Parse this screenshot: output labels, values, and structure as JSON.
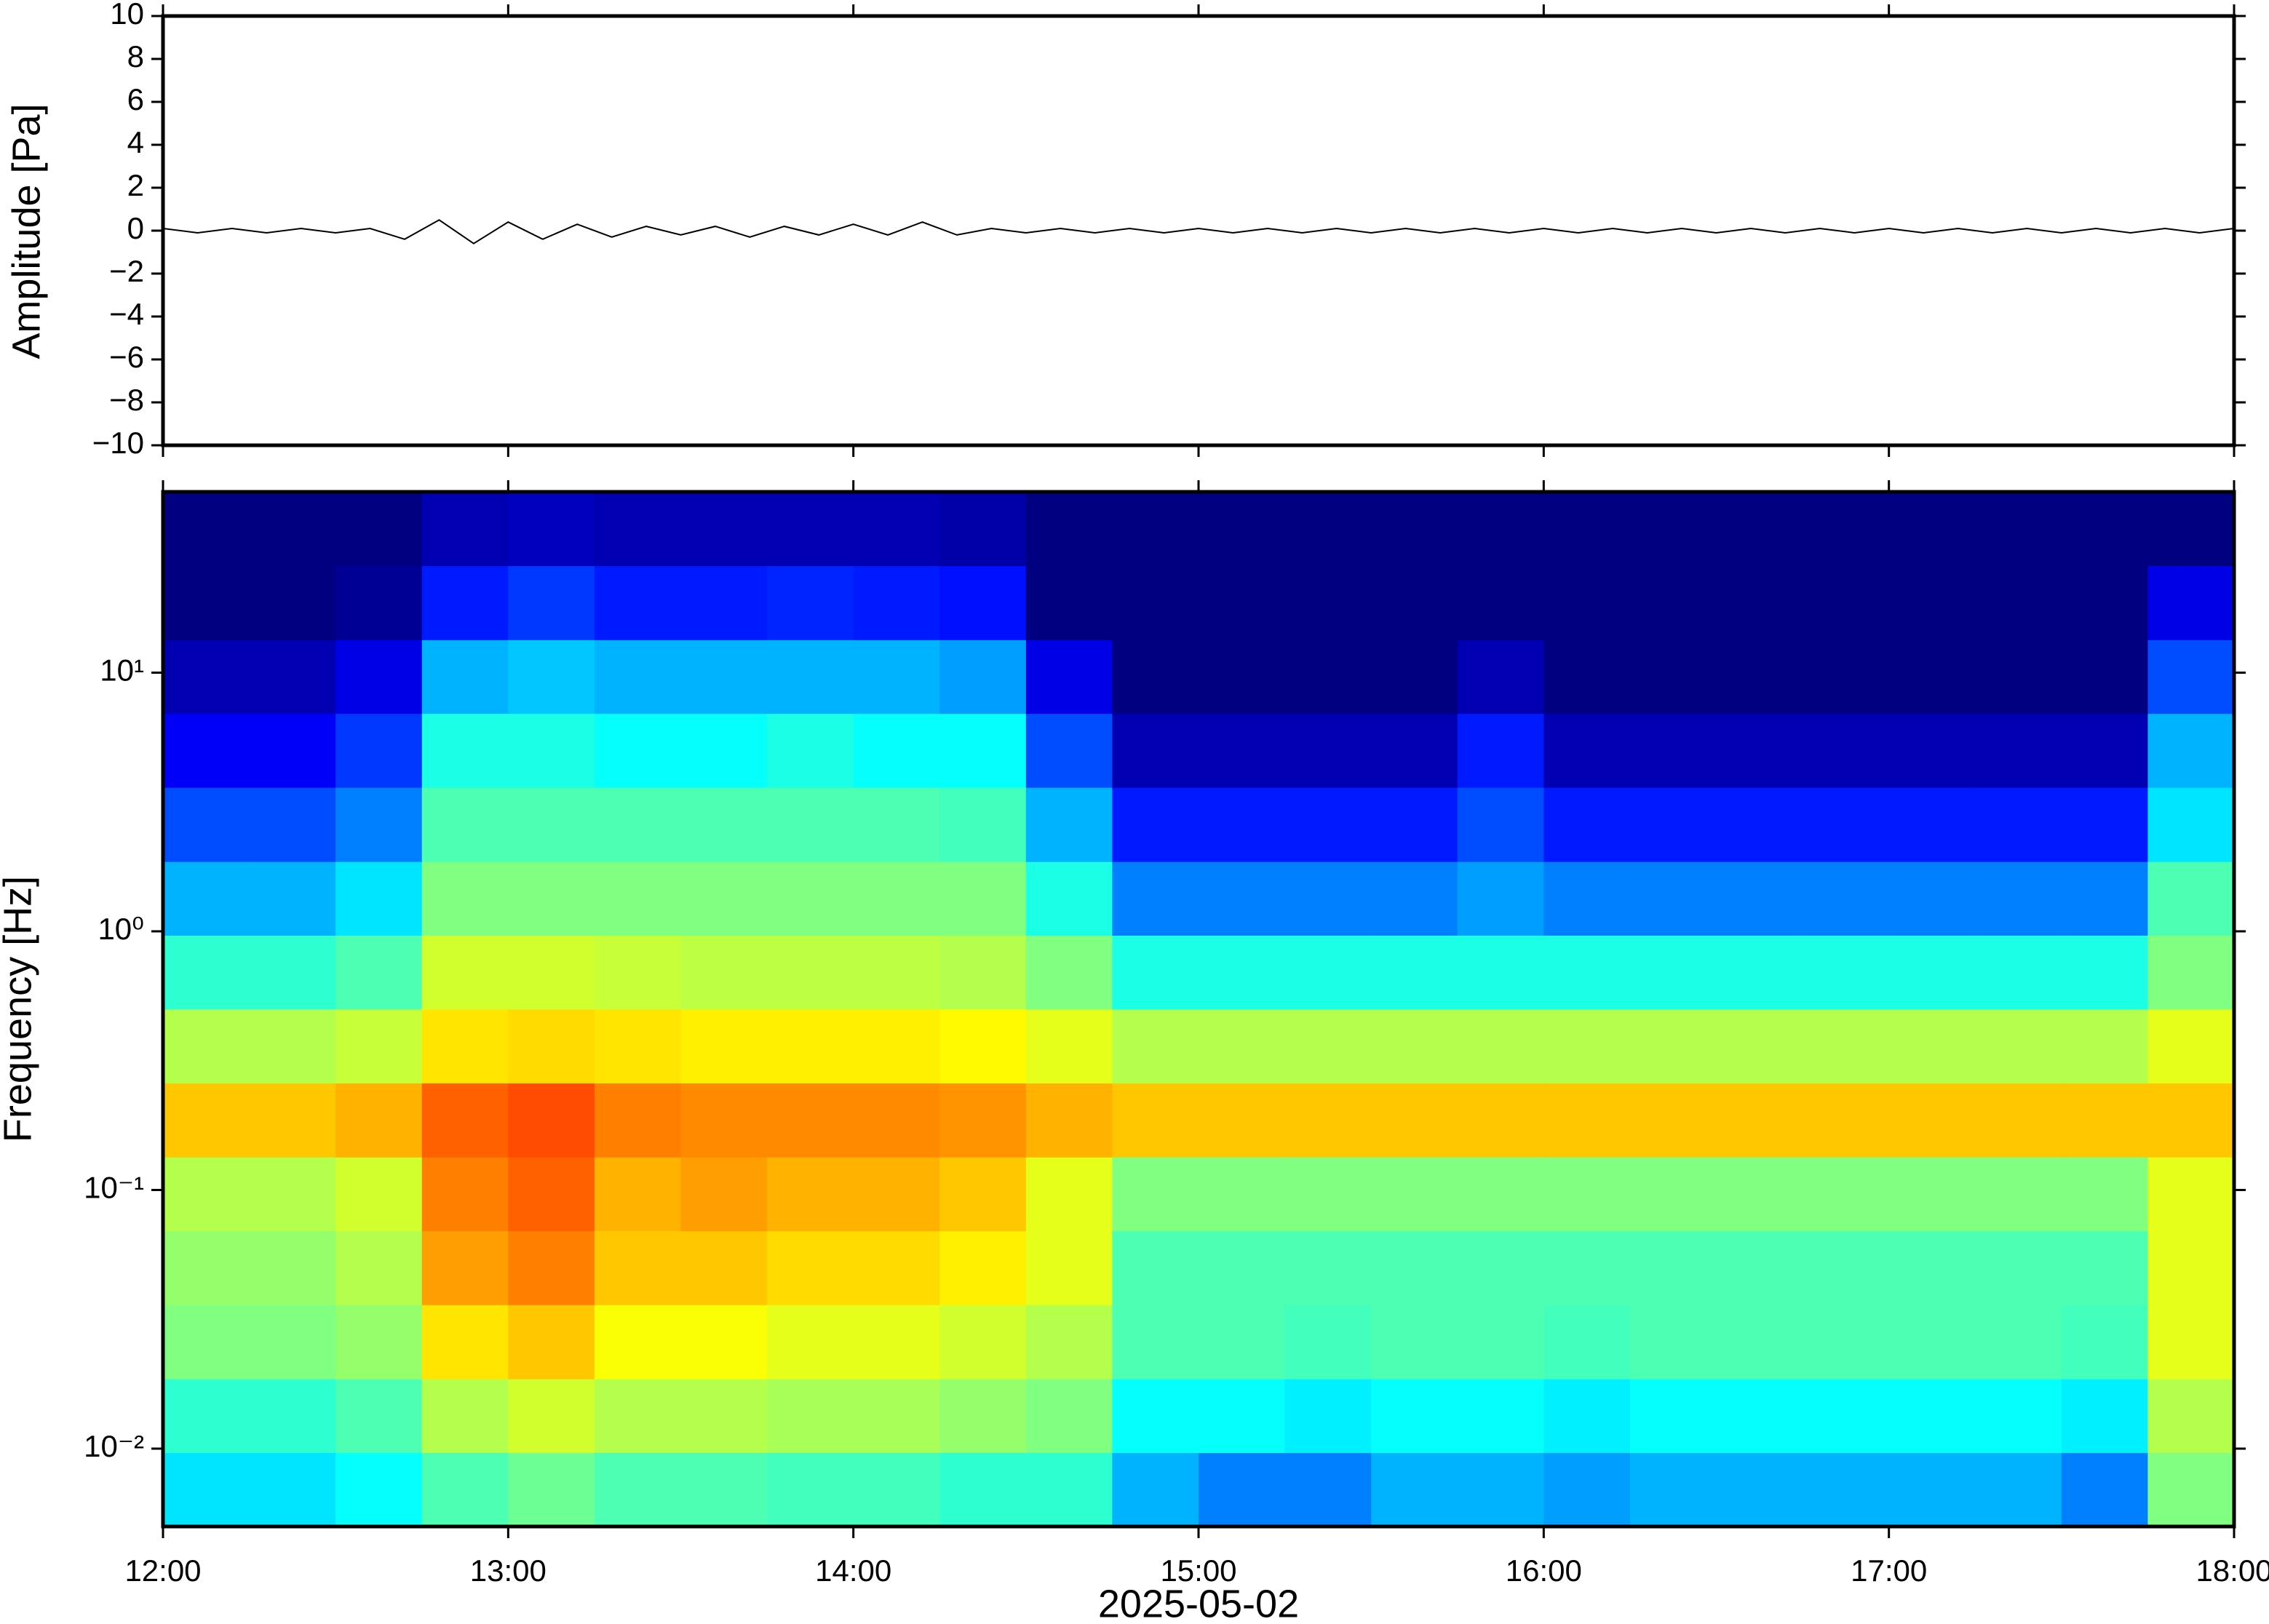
{
  "chart_data": [
    {
      "type": "line",
      "ylabel": "Amplitude [Pa]",
      "color": "#000000",
      "xlim": [
        12,
        18
      ],
      "xticks": [
        {
          "value": 12,
          "label": "12:00"
        },
        {
          "value": 13,
          "label": "13:00"
        },
        {
          "value": 14,
          "label": "14:00"
        },
        {
          "value": 15,
          "label": "15:00"
        },
        {
          "value": 16,
          "label": "16:00"
        },
        {
          "value": 17,
          "label": "17:00"
        },
        {
          "value": 18,
          "label": "18:00"
        }
      ],
      "ylim": [
        -10,
        10
      ],
      "yticks": [
        {
          "value": -10,
          "label": "−10"
        },
        {
          "value": -8,
          "label": "−8"
        },
        {
          "value": -6,
          "label": "−6"
        },
        {
          "value": -4,
          "label": "−4"
        },
        {
          "value": -2,
          "label": "−2"
        },
        0,
        2,
        4,
        6,
        8,
        10
      ],
      "x": [
        12,
        12.1,
        12.2,
        12.3,
        12.4,
        12.5,
        12.6,
        12.7,
        12.8,
        12.9,
        13,
        13.1,
        13.2,
        13.3,
        13.4,
        13.5,
        13.6,
        13.7,
        13.8,
        13.9,
        14,
        14.1,
        14.2,
        14.3,
        14.4,
        14.5,
        14.6,
        14.7,
        14.8,
        14.9,
        15,
        15.1,
        15.2,
        15.3,
        15.4,
        15.5,
        15.6,
        15.7,
        15.8,
        15.9,
        16,
        16.1,
        16.2,
        16.3,
        16.4,
        16.5,
        16.6,
        16.7,
        16.8,
        16.9,
        17,
        17.1,
        17.2,
        17.3,
        17.4,
        17.5,
        17.6,
        17.7,
        17.8,
        17.9,
        18
      ],
      "values": [
        0.1,
        -0.1,
        0.1,
        -0.1,
        0.1,
        -0.1,
        0.1,
        -0.4,
        0.5,
        -0.6,
        0.4,
        -0.4,
        0.3,
        -0.3,
        0.2,
        -0.2,
        0.2,
        -0.3,
        0.2,
        -0.2,
        0.3,
        -0.2,
        0.4,
        -0.2,
        0.1,
        -0.1,
        0.1,
        -0.1,
        0.1,
        -0.1,
        0.1,
        -0.1,
        0.1,
        -0.1,
        0.1,
        -0.1,
        0.1,
        -0.1,
        0.1,
        -0.1,
        0.1,
        -0.1,
        0.1,
        -0.1,
        0.1,
        -0.1,
        0.1,
        -0.1,
        0.1,
        -0.1,
        0.1,
        -0.1,
        0.1,
        -0.1,
        0.1,
        -0.1,
        0.1,
        -0.1,
        0.1,
        -0.1,
        0.1
      ]
    },
    {
      "type": "heatmap",
      "ylabel": "Frequency [Hz]",
      "xlabel": "2025-05-02",
      "colormap": "jet",
      "log_y": true,
      "xlim": [
        12,
        18
      ],
      "xticks": [
        {
          "value": 12,
          "label": "12:00"
        },
        {
          "value": 13,
          "label": "13:00"
        },
        {
          "value": 14,
          "label": "14:00"
        },
        {
          "value": 15,
          "label": "15:00"
        },
        {
          "value": 16,
          "label": "16:00"
        },
        {
          "value": 17,
          "label": "17:00"
        },
        {
          "value": 18,
          "label": "18:00"
        }
      ],
      "ylim": [
        0.005,
        50
      ],
      "yticks": [
        {
          "value": 0.01,
          "label": "10⁻²"
        },
        {
          "value": 0.1,
          "label": "10⁻¹"
        },
        {
          "value": 1,
          "label": "10⁰"
        },
        {
          "value": 10,
          "label": "10¹"
        }
      ],
      "zlim": [
        0,
        1
      ],
      "xbins": [
        12,
        12.25,
        12.5,
        12.75,
        13,
        13.25,
        13.5,
        13.75,
        14,
        14.25,
        14.5,
        14.75,
        15,
        15.25,
        15.5,
        15.75,
        16,
        16.25,
        16.5,
        16.75,
        17,
        17.25,
        17.5,
        17.75,
        18
      ],
      "ybins": [
        0.005,
        0.00965,
        0.0186,
        0.036,
        0.0695,
        0.134,
        0.259,
        0.5,
        0.965,
        1.86,
        3.6,
        6.95,
        13.4,
        25.9,
        50
      ],
      "z": [
        [
          0.35,
          0.42,
          0.5,
          0.52,
          0.55,
          0.68,
          0.55,
          0.42,
          0.3,
          0.2,
          0.12,
          0.05,
          0,
          0
        ],
        [
          0.35,
          0.42,
          0.5,
          0.52,
          0.55,
          0.68,
          0.55,
          0.42,
          0.3,
          0.2,
          0.12,
          0.05,
          0,
          0
        ],
        [
          0.38,
          0.45,
          0.52,
          0.55,
          0.58,
          0.7,
          0.57,
          0.45,
          0.35,
          0.25,
          0.18,
          0.1,
          0.02,
          0
        ],
        [
          0.45,
          0.55,
          0.65,
          0.72,
          0.75,
          0.78,
          0.65,
          0.58,
          0.5,
          0.45,
          0.4,
          0.3,
          0.15,
          0.05
        ],
        [
          0.48,
          0.58,
          0.68,
          0.75,
          0.78,
          0.8,
          0.66,
          0.58,
          0.5,
          0.45,
          0.4,
          0.32,
          0.18,
          0.06
        ],
        [
          0.45,
          0.55,
          0.62,
          0.68,
          0.7,
          0.75,
          0.65,
          0.57,
          0.5,
          0.45,
          0.38,
          0.3,
          0.15,
          0.05
        ],
        [
          0.45,
          0.55,
          0.62,
          0.68,
          0.72,
          0.74,
          0.64,
          0.56,
          0.5,
          0.45,
          0.38,
          0.3,
          0.15,
          0.05
        ],
        [
          0.44,
          0.54,
          0.6,
          0.66,
          0.7,
          0.74,
          0.64,
          0.56,
          0.5,
          0.45,
          0.4,
          0.3,
          0.16,
          0.05
        ],
        [
          0.44,
          0.54,
          0.6,
          0.66,
          0.7,
          0.74,
          0.64,
          0.56,
          0.5,
          0.45,
          0.38,
          0.3,
          0.15,
          0.05
        ],
        [
          0.42,
          0.52,
          0.58,
          0.64,
          0.68,
          0.73,
          0.63,
          0.55,
          0.5,
          0.44,
          0.38,
          0.28,
          0.14,
          0.04
        ],
        [
          0.42,
          0.5,
          0.55,
          0.6,
          0.6,
          0.7,
          0.6,
          0.5,
          0.4,
          0.3,
          0.2,
          0.1,
          0,
          0
        ],
        [
          0.3,
          0.38,
          0.45,
          0.45,
          0.5,
          0.68,
          0.55,
          0.4,
          0.25,
          0.15,
          0.05,
          0,
          0,
          0
        ],
        [
          0.25,
          0.38,
          0.45,
          0.45,
          0.5,
          0.68,
          0.55,
          0.4,
          0.25,
          0.15,
          0.05,
          0,
          0,
          0
        ],
        [
          0.25,
          0.36,
          0.44,
          0.45,
          0.5,
          0.68,
          0.55,
          0.4,
          0.25,
          0.15,
          0.05,
          0,
          0,
          0
        ],
        [
          0.3,
          0.38,
          0.45,
          0.45,
          0.5,
          0.68,
          0.55,
          0.4,
          0.25,
          0.15,
          0.05,
          0,
          0,
          0
        ],
        [
          0.3,
          0.38,
          0.45,
          0.45,
          0.5,
          0.68,
          0.55,
          0.4,
          0.28,
          0.2,
          0.15,
          0.05,
          0,
          0
        ],
        [
          0.28,
          0.36,
          0.44,
          0.45,
          0.5,
          0.68,
          0.55,
          0.4,
          0.25,
          0.15,
          0.05,
          0,
          0,
          0
        ],
        [
          0.3,
          0.38,
          0.45,
          0.45,
          0.5,
          0.68,
          0.55,
          0.4,
          0.25,
          0.15,
          0.05,
          0,
          0,
          0
        ],
        [
          0.3,
          0.38,
          0.45,
          0.45,
          0.5,
          0.68,
          0.55,
          0.4,
          0.25,
          0.15,
          0.05,
          0,
          0,
          0
        ],
        [
          0.3,
          0.38,
          0.45,
          0.45,
          0.5,
          0.68,
          0.55,
          0.4,
          0.25,
          0.15,
          0.05,
          0,
          0,
          0
        ],
        [
          0.3,
          0.38,
          0.45,
          0.45,
          0.5,
          0.68,
          0.55,
          0.4,
          0.25,
          0.15,
          0.05,
          0,
          0,
          0
        ],
        [
          0.3,
          0.38,
          0.45,
          0.45,
          0.5,
          0.68,
          0.55,
          0.4,
          0.25,
          0.15,
          0.05,
          0,
          0,
          0
        ],
        [
          0.25,
          0.36,
          0.44,
          0.45,
          0.5,
          0.68,
          0.55,
          0.4,
          0.25,
          0.15,
          0.05,
          0,
          0,
          0
        ],
        [
          0.5,
          0.55,
          0.6,
          0.6,
          0.6,
          0.68,
          0.6,
          0.5,
          0.45,
          0.35,
          0.3,
          0.2,
          0.1,
          0
        ]
      ]
    }
  ]
}
